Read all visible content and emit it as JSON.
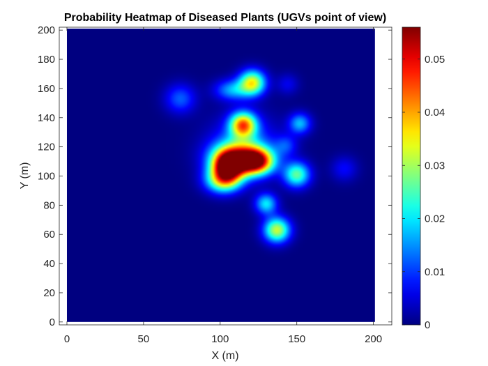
{
  "chart_data": {
    "type": "heatmap",
    "title": "Probability Heatmap of Diseased Plants (UGVs point of view)",
    "xlabel": "X (m)",
    "ylabel": "Y (m)",
    "xlim": [
      -5,
      212
    ],
    "ylim": [
      -2,
      202
    ],
    "data_extent_x": [
      0,
      201
    ],
    "data_extent_y": [
      0,
      201
    ],
    "xticks": [
      0,
      50,
      100,
      150,
      200
    ],
    "yticks": [
      0,
      20,
      40,
      60,
      80,
      100,
      120,
      140,
      160,
      180,
      200
    ],
    "colormap": "jet",
    "clim": [
      0,
      0.056
    ],
    "colorbar_ticks": [
      0,
      0.01,
      0.02,
      0.03,
      0.04,
      0.05
    ],
    "grid": false,
    "blobs": [
      {
        "x": 105,
        "y": 107,
        "peak": 0.05,
        "sx": 7,
        "sy": 7
      },
      {
        "x": 123,
        "y": 110,
        "peak": 0.048,
        "sx": 8,
        "sy": 6
      },
      {
        "x": 112,
        "y": 113,
        "peak": 0.03,
        "sx": 12,
        "sy": 8
      },
      {
        "x": 102,
        "y": 97,
        "peak": 0.03,
        "sx": 8,
        "sy": 6
      },
      {
        "x": 115,
        "y": 135,
        "peak": 0.04,
        "sx": 6,
        "sy": 6
      },
      {
        "x": 121,
        "y": 164,
        "peak": 0.034,
        "sx": 6,
        "sy": 6
      },
      {
        "x": 108,
        "y": 159,
        "peak": 0.016,
        "sx": 8,
        "sy": 5
      },
      {
        "x": 137,
        "y": 63,
        "peak": 0.032,
        "sx": 6,
        "sy": 6
      },
      {
        "x": 130,
        "y": 81,
        "peak": 0.02,
        "sx": 5,
        "sy": 5
      },
      {
        "x": 150,
        "y": 101,
        "peak": 0.026,
        "sx": 6,
        "sy": 6
      },
      {
        "x": 152,
        "y": 136,
        "peak": 0.017,
        "sx": 5,
        "sy": 5
      },
      {
        "x": 74,
        "y": 153,
        "peak": 0.012,
        "sx": 7,
        "sy": 7
      },
      {
        "x": 181,
        "y": 105,
        "peak": 0.007,
        "sx": 6,
        "sy": 6
      },
      {
        "x": 143,
        "y": 121,
        "peak": 0.009,
        "sx": 5,
        "sy": 5
      },
      {
        "x": 144,
        "y": 163,
        "peak": 0.006,
        "sx": 5,
        "sy": 5
      },
      {
        "x": 116,
        "y": 122,
        "peak": 0.01,
        "sx": 16,
        "sy": 14
      }
    ]
  }
}
